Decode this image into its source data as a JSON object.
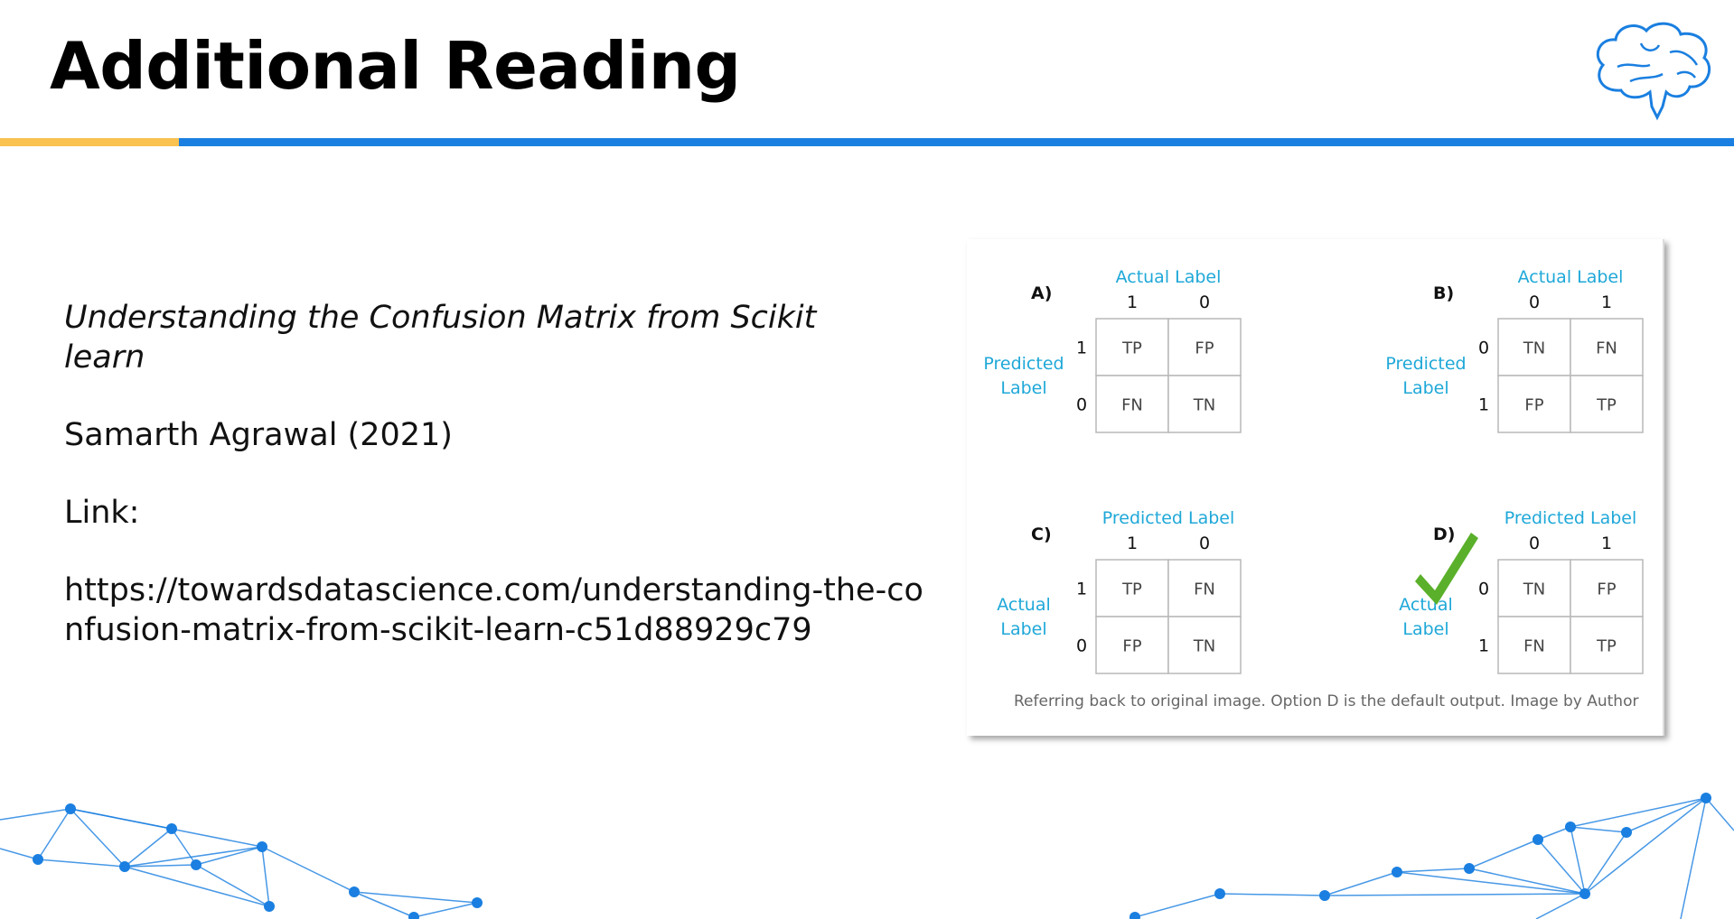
{
  "header": {
    "title": "Additional Reading",
    "accent_yellow": "#f9c251",
    "accent_blue": "#1a7fe0",
    "logo_icon": "brain-icon"
  },
  "reading": {
    "book_title": "Understanding the Confusion Matrix from Scikit learn",
    "author_year": "Samarth Agrawal (2021)",
    "link_label": "Link:",
    "link_url": "https://towardsdatascience.com/understanding-the-confusion-matrix-from-scikit-learn-c51d88929c79"
  },
  "figure": {
    "caption": "Referring back to original image. Option D is the default output. Image by Author",
    "label_color": "#1fa8d8",
    "check_color": "#5ab02a",
    "panels": [
      {
        "letter": "A)",
        "top_label": "Actual Label",
        "side_label_1": "Predicted",
        "side_label_2": "Label",
        "col_ticks": [
          "1",
          "0"
        ],
        "row_ticks": [
          "1",
          "0"
        ],
        "cells": [
          [
            "TP",
            "FP"
          ],
          [
            "FN",
            "TN"
          ]
        ]
      },
      {
        "letter": "B)",
        "top_label": "Actual Label",
        "side_label_1": "Predicted",
        "side_label_2": "Label",
        "col_ticks": [
          "0",
          "1"
        ],
        "row_ticks": [
          "0",
          "1"
        ],
        "cells": [
          [
            "TN",
            "FN"
          ],
          [
            "FP",
            "TP"
          ]
        ]
      },
      {
        "letter": "C)",
        "top_label": "Predicted Label",
        "side_label_1": "Actual",
        "side_label_2": "Label",
        "col_ticks": [
          "1",
          "0"
        ],
        "row_ticks": [
          "1",
          "0"
        ],
        "cells": [
          [
            "TP",
            "FN"
          ],
          [
            "FP",
            "TN"
          ]
        ]
      },
      {
        "letter": "D)",
        "top_label": "Predicted Label",
        "side_label_1": "Actual",
        "side_label_2": "Label",
        "col_ticks": [
          "0",
          "1"
        ],
        "row_ticks": [
          "0",
          "1"
        ],
        "cells": [
          [
            "TN",
            "FP"
          ],
          [
            "FN",
            "TP"
          ]
        ],
        "check_icon": "checkmark-icon"
      }
    ]
  },
  "decoration": {
    "network_color": "#1a7fe0",
    "network_icon": "network-graph-decoration"
  }
}
